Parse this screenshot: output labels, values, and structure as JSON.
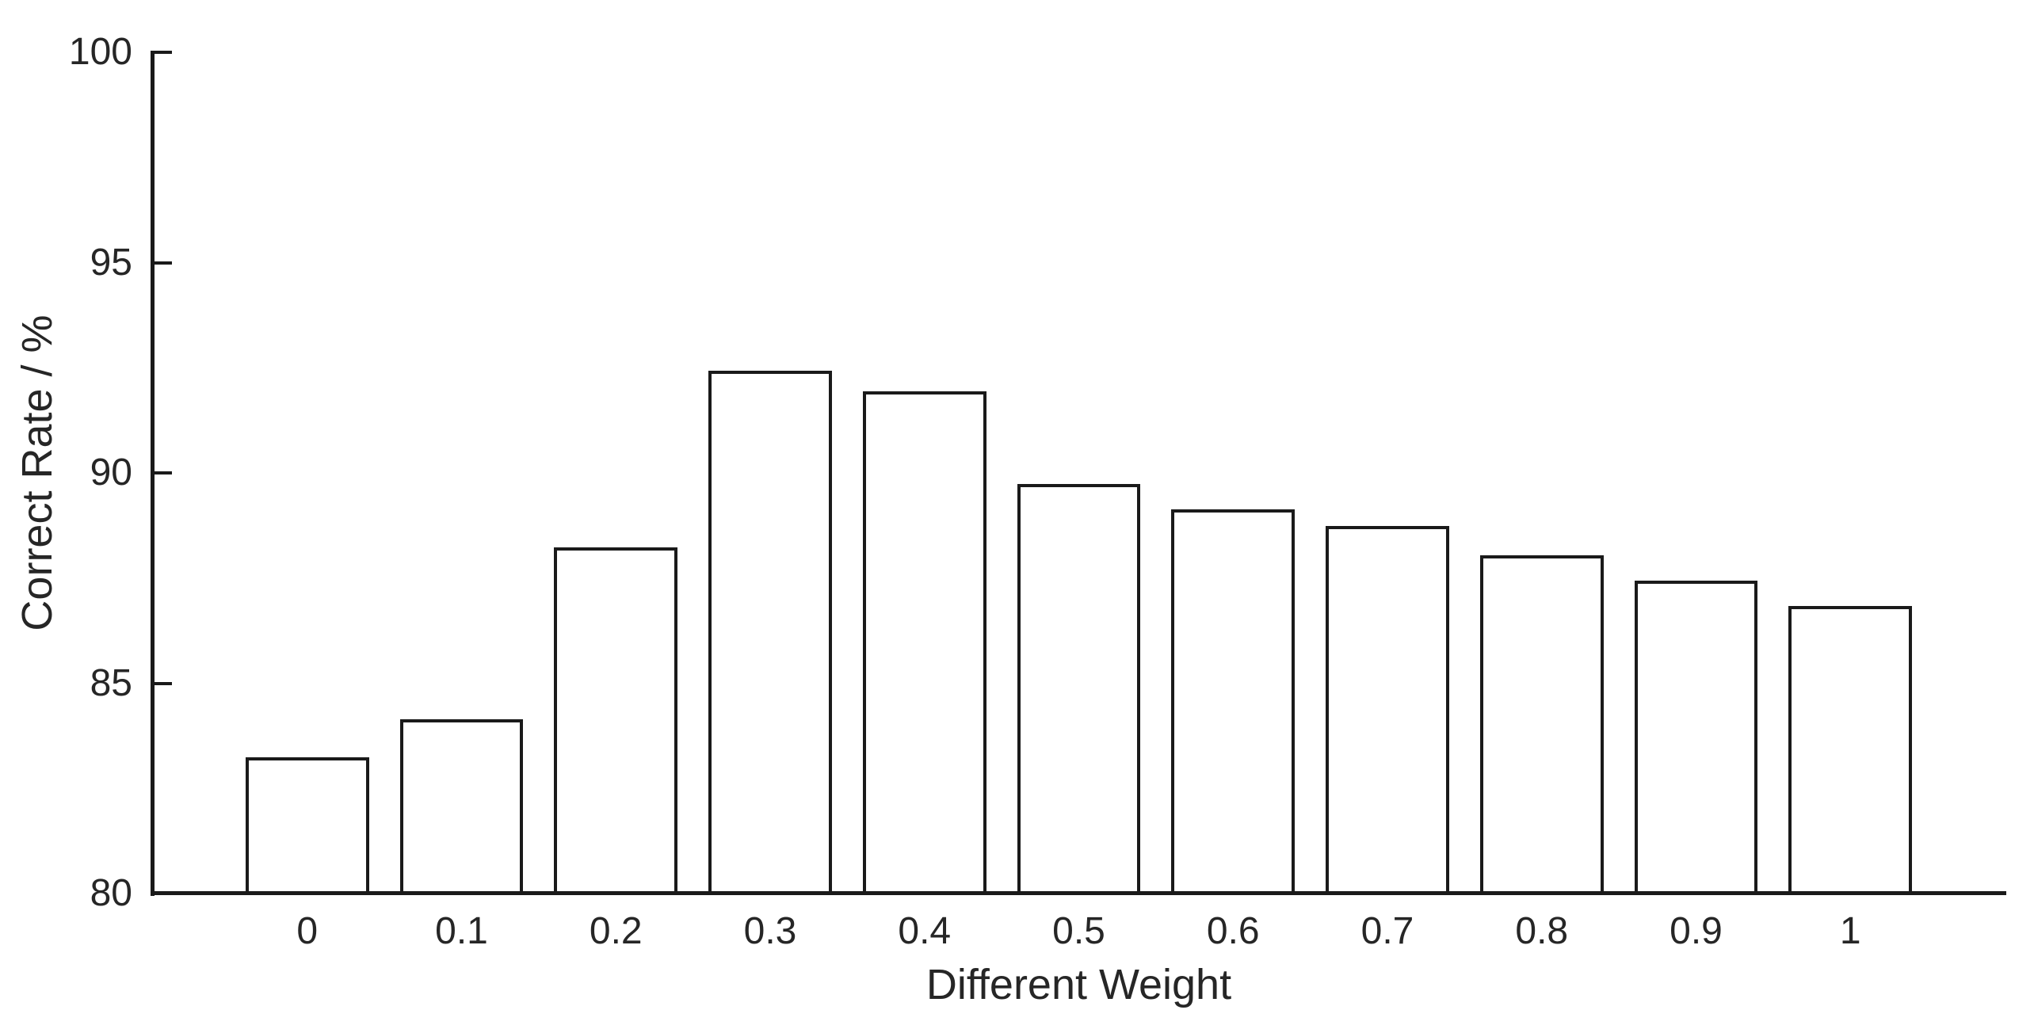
{
  "figure": {
    "background": "#ffffff",
    "axis_color": "#1a1a1a",
    "text_color": "#262626"
  },
  "chart_data": {
    "type": "bar",
    "categories": [
      "0",
      "0.1",
      "0.2",
      "0.3",
      "0.4",
      "0.5",
      "0.6",
      "0.7",
      "0.8",
      "0.9",
      "1"
    ],
    "values": [
      83.2,
      84.1,
      88.2,
      92.4,
      91.9,
      89.7,
      89.1,
      88.7,
      88.0,
      87.4,
      86.8
    ],
    "title": "",
    "xlabel": "Different Weight",
    "ylabel": "Correct Rate / %",
    "ylim": [
      80,
      100
    ],
    "yticks": [
      80,
      85,
      90,
      95,
      100
    ],
    "grid": false,
    "axes_spines": "left-bottom-only",
    "tick_direction": "in",
    "bar_width_fraction": 0.8,
    "bar_fill": "#ffffff",
    "bar_border": "#1a1a1a"
  }
}
